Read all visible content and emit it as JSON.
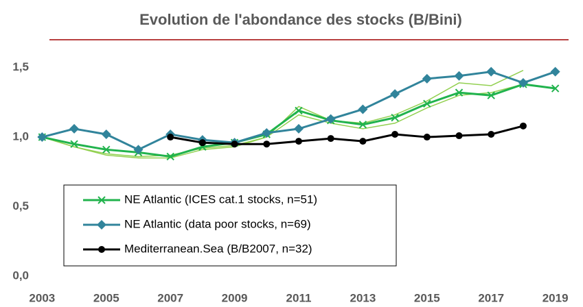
{
  "chart_data": {
    "type": "line",
    "title": "Evolution de l'abondance des stocks (B/Bini)",
    "x": [
      2003,
      2004,
      2005,
      2006,
      2007,
      2008,
      2009,
      2010,
      2011,
      2012,
      2013,
      2014,
      2015,
      2016,
      2017,
      2018,
      2019
    ],
    "series": [
      {
        "color": "#92d050",
        "values": [
          1.0,
          0.93,
          0.87,
          0.85,
          0.85,
          0.91,
          0.93,
          1.0,
          1.22,
          1.12,
          1.1,
          1.16,
          1.26,
          1.39,
          1.37,
          1.48,
          null
        ]
      },
      {
        "color": "#92d050",
        "values": [
          1.0,
          0.93,
          0.88,
          0.86,
          0.87,
          0.92,
          0.94,
          1.0,
          1.16,
          1.1,
          1.06,
          1.1,
          1.21,
          1.3,
          1.32,
          1.38,
          null
        ]
      },
      {
        "name": "NE Atlantic (ICES cat.1 stocks, n=51)",
        "color": "#21b34d",
        "marker": "x",
        "values": [
          1.0,
          0.95,
          0.91,
          0.89,
          0.86,
          0.93,
          0.96,
          1.02,
          1.19,
          1.12,
          1.09,
          1.14,
          1.24,
          1.32,
          1.3,
          1.38,
          1.35
        ]
      },
      {
        "name": "NE Atlantic (data poor stocks, n=69)",
        "color": "#31849b",
        "marker": "diamond",
        "values": [
          1.0,
          1.06,
          1.02,
          0.91,
          1.02,
          0.98,
          0.96,
          1.03,
          1.06,
          1.13,
          1.2,
          1.31,
          1.42,
          1.44,
          1.47,
          1.39,
          1.47
        ]
      },
      {
        "name": "Mediterranean.Sea (B/B2007, n=32)",
        "color": "#000000",
        "marker": "circle",
        "values": [
          null,
          null,
          null,
          null,
          1.0,
          0.96,
          0.95,
          0.95,
          0.97,
          0.99,
          0.97,
          1.02,
          1.0,
          1.01,
          1.02,
          1.08,
          null
        ]
      }
    ],
    "xlim": [
      2002.8,
      2019.5
    ],
    "xticks": [
      2003,
      2005,
      2007,
      2009,
      2011,
      2013,
      2015,
      2017,
      2019
    ],
    "ylim": [
      0,
      1.7
    ],
    "yticks": [
      {
        "value": 0,
        "label": "0,0"
      },
      {
        "value": 0.5,
        "label": "0,5"
      },
      {
        "value": 1.0,
        "label": "1,0"
      },
      {
        "value": 1.5,
        "label": "1,5"
      }
    ],
    "legend": "lower left"
  }
}
